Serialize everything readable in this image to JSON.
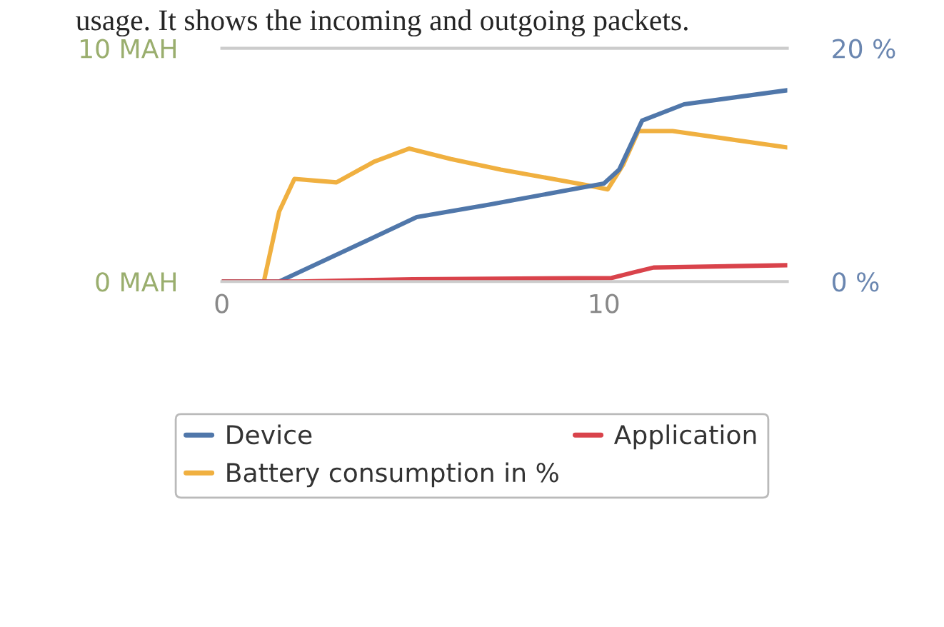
{
  "chart_data": {
    "type": "line",
    "annotations": [
      "usage. It shows the incoming and outgoing packets."
    ],
    "xlim": [
      0,
      14.8
    ],
    "xticks": [
      0,
      10
    ],
    "ylim": [
      0,
      10
    ],
    "yticks": [
      {
        "value": 0,
        "label": "0 MAH"
      },
      {
        "value": 10,
        "label": "10 MAH"
      }
    ],
    "y2lim": [
      0,
      20
    ],
    "y2ticks": [
      {
        "value": 0,
        "label": "0 %"
      },
      {
        "value": 20,
        "label": "20 %"
      }
    ],
    "legend": "bottom",
    "series": [
      {
        "name": "Device",
        "color": "#5077aa",
        "x": [
          0,
          1.5,
          3.2,
          5.1,
          7.0,
          10.0,
          10.4,
          11.0,
          12.1,
          14.8
        ],
        "values": [
          0,
          0,
          1.3,
          2.76,
          3.3,
          4.2,
          4.8,
          6.9,
          7.6,
          8.2
        ]
      },
      {
        "name": "Application",
        "color": "#d9434b",
        "x": [
          0,
          2.0,
          5.0,
          10.2,
          10.8,
          11.3,
          14.8
        ],
        "values": [
          0,
          0,
          0.1,
          0.15,
          0.4,
          0.6,
          0.7
        ]
      },
      {
        "name": "Battery consumption in %",
        "color": "#f0b040",
        "axis": "y2",
        "x": [
          0,
          1.1,
          1.5,
          1.9,
          3.0,
          4.0,
          4.9,
          6.0,
          7.3,
          9.5,
          10.1,
          10.5,
          10.9,
          11.8,
          14.8
        ],
        "values": [
          0,
          0,
          6.0,
          8.8,
          8.5,
          10.3,
          11.4,
          10.5,
          9.6,
          8.3,
          7.9,
          10.0,
          12.9,
          12.9,
          11.5
        ]
      }
    ]
  }
}
